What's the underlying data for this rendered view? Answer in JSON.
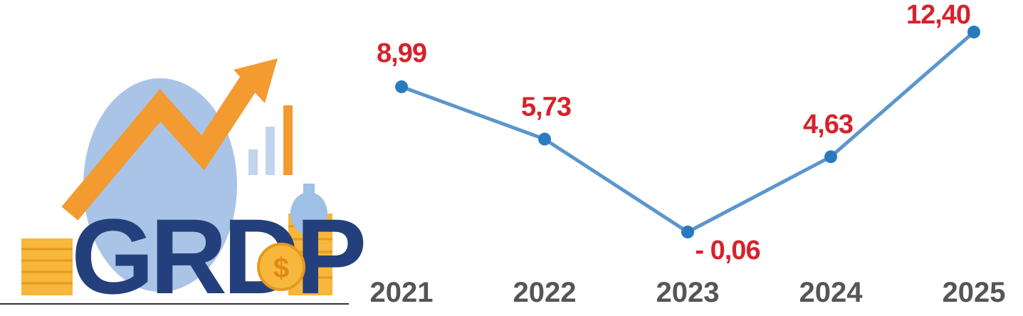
{
  "logo": {
    "text": "GRDP",
    "icons": [
      "trend-arrow-icon",
      "bar-chart-icon",
      "coin-stack-icon",
      "dollar-coin-icon",
      "money-bag-icon"
    ],
    "colors": {
      "text": "#24407c",
      "arrow": "#f39a31",
      "ellipse": "#a9c4e6",
      "coin": "#f6b73c"
    }
  },
  "chart_data": {
    "type": "line",
    "categories": [
      "2021",
      "2022",
      "2023",
      "2024",
      "2025"
    ],
    "series": [
      {
        "values": [
          8.99,
          5.73,
          -0.06,
          4.63,
          12.4
        ]
      }
    ],
    "data_labels": [
      "8,99",
      "5,73",
      "- 0,06",
      "4,63",
      "12,40"
    ],
    "title": "",
    "xlabel": "",
    "ylabel": "",
    "ylim": [
      -0.06,
      12.4
    ],
    "grid": false,
    "legend": "none",
    "colors": {
      "line": "#5b96cc",
      "marker": "#2a7ac0",
      "label": "#d7222b",
      "axis_text": "#555555"
    }
  }
}
